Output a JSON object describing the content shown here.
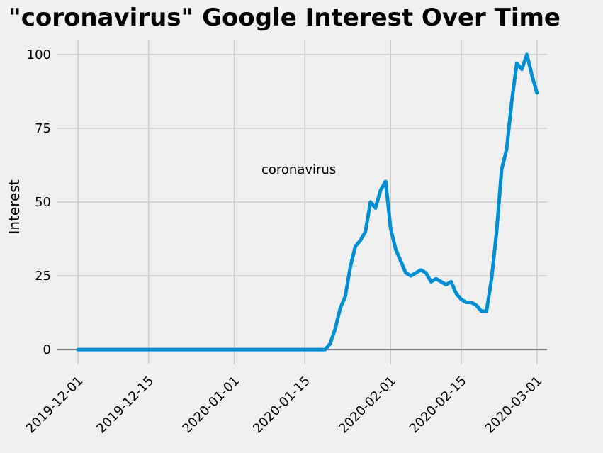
{
  "chart_data": {
    "type": "line",
    "title": "\"coronavirus\" Google Interest Over Time",
    "xlabel": "",
    "ylabel": "Interest",
    "annotation": "coronavirus",
    "xlim": [
      "2019-12-01",
      "2020-03-03"
    ],
    "ylim": [
      -5,
      105
    ],
    "grid": true,
    "x_ticks": [
      "2019-12-01",
      "2019-12-15",
      "2020-01-01",
      "2020-01-15",
      "2020-02-01",
      "2020-02-15",
      "2020-03-01"
    ],
    "y_ticks": [
      0,
      25,
      50,
      75,
      100
    ],
    "colors": {
      "series": "#008fd5",
      "background": "#f0f0f0",
      "grid": "#cbcbcb",
      "zero_line": "#808080"
    },
    "series": [
      {
        "points": [
          [
            "2019-12-01",
            0
          ],
          [
            "2020-01-19",
            0
          ],
          [
            "2020-01-20",
            2
          ],
          [
            "2020-01-21",
            7
          ],
          [
            "2020-01-22",
            14
          ],
          [
            "2020-01-23",
            18
          ],
          [
            "2020-01-24",
            28
          ],
          [
            "2020-01-25",
            35
          ],
          [
            "2020-01-26",
            37
          ],
          [
            "2020-01-27",
            40
          ],
          [
            "2020-01-28",
            50
          ],
          [
            "2020-01-29",
            48
          ],
          [
            "2020-01-30",
            54
          ],
          [
            "2020-01-31",
            57
          ],
          [
            "2020-02-01",
            41
          ],
          [
            "2020-02-02",
            34
          ],
          [
            "2020-02-03",
            30
          ],
          [
            "2020-02-04",
            26
          ],
          [
            "2020-02-05",
            25
          ],
          [
            "2020-02-06",
            26
          ],
          [
            "2020-02-07",
            27
          ],
          [
            "2020-02-08",
            26
          ],
          [
            "2020-02-09",
            23
          ],
          [
            "2020-02-10",
            24
          ],
          [
            "2020-02-11",
            23
          ],
          [
            "2020-02-12",
            22
          ],
          [
            "2020-02-13",
            23
          ],
          [
            "2020-02-14",
            19
          ],
          [
            "2020-02-15",
            17
          ],
          [
            "2020-02-16",
            16
          ],
          [
            "2020-02-17",
            16
          ],
          [
            "2020-02-18",
            15
          ],
          [
            "2020-02-19",
            13
          ],
          [
            "2020-02-20",
            13
          ],
          [
            "2020-02-21",
            24
          ],
          [
            "2020-02-22",
            40
          ],
          [
            "2020-02-23",
            61
          ],
          [
            "2020-02-24",
            68
          ],
          [
            "2020-02-25",
            84
          ],
          [
            "2020-02-26",
            97
          ],
          [
            "2020-02-27",
            95
          ],
          [
            "2020-02-28",
            100
          ],
          [
            "2020-02-29",
            93
          ],
          [
            "2020-03-01",
            87
          ]
        ]
      }
    ]
  }
}
